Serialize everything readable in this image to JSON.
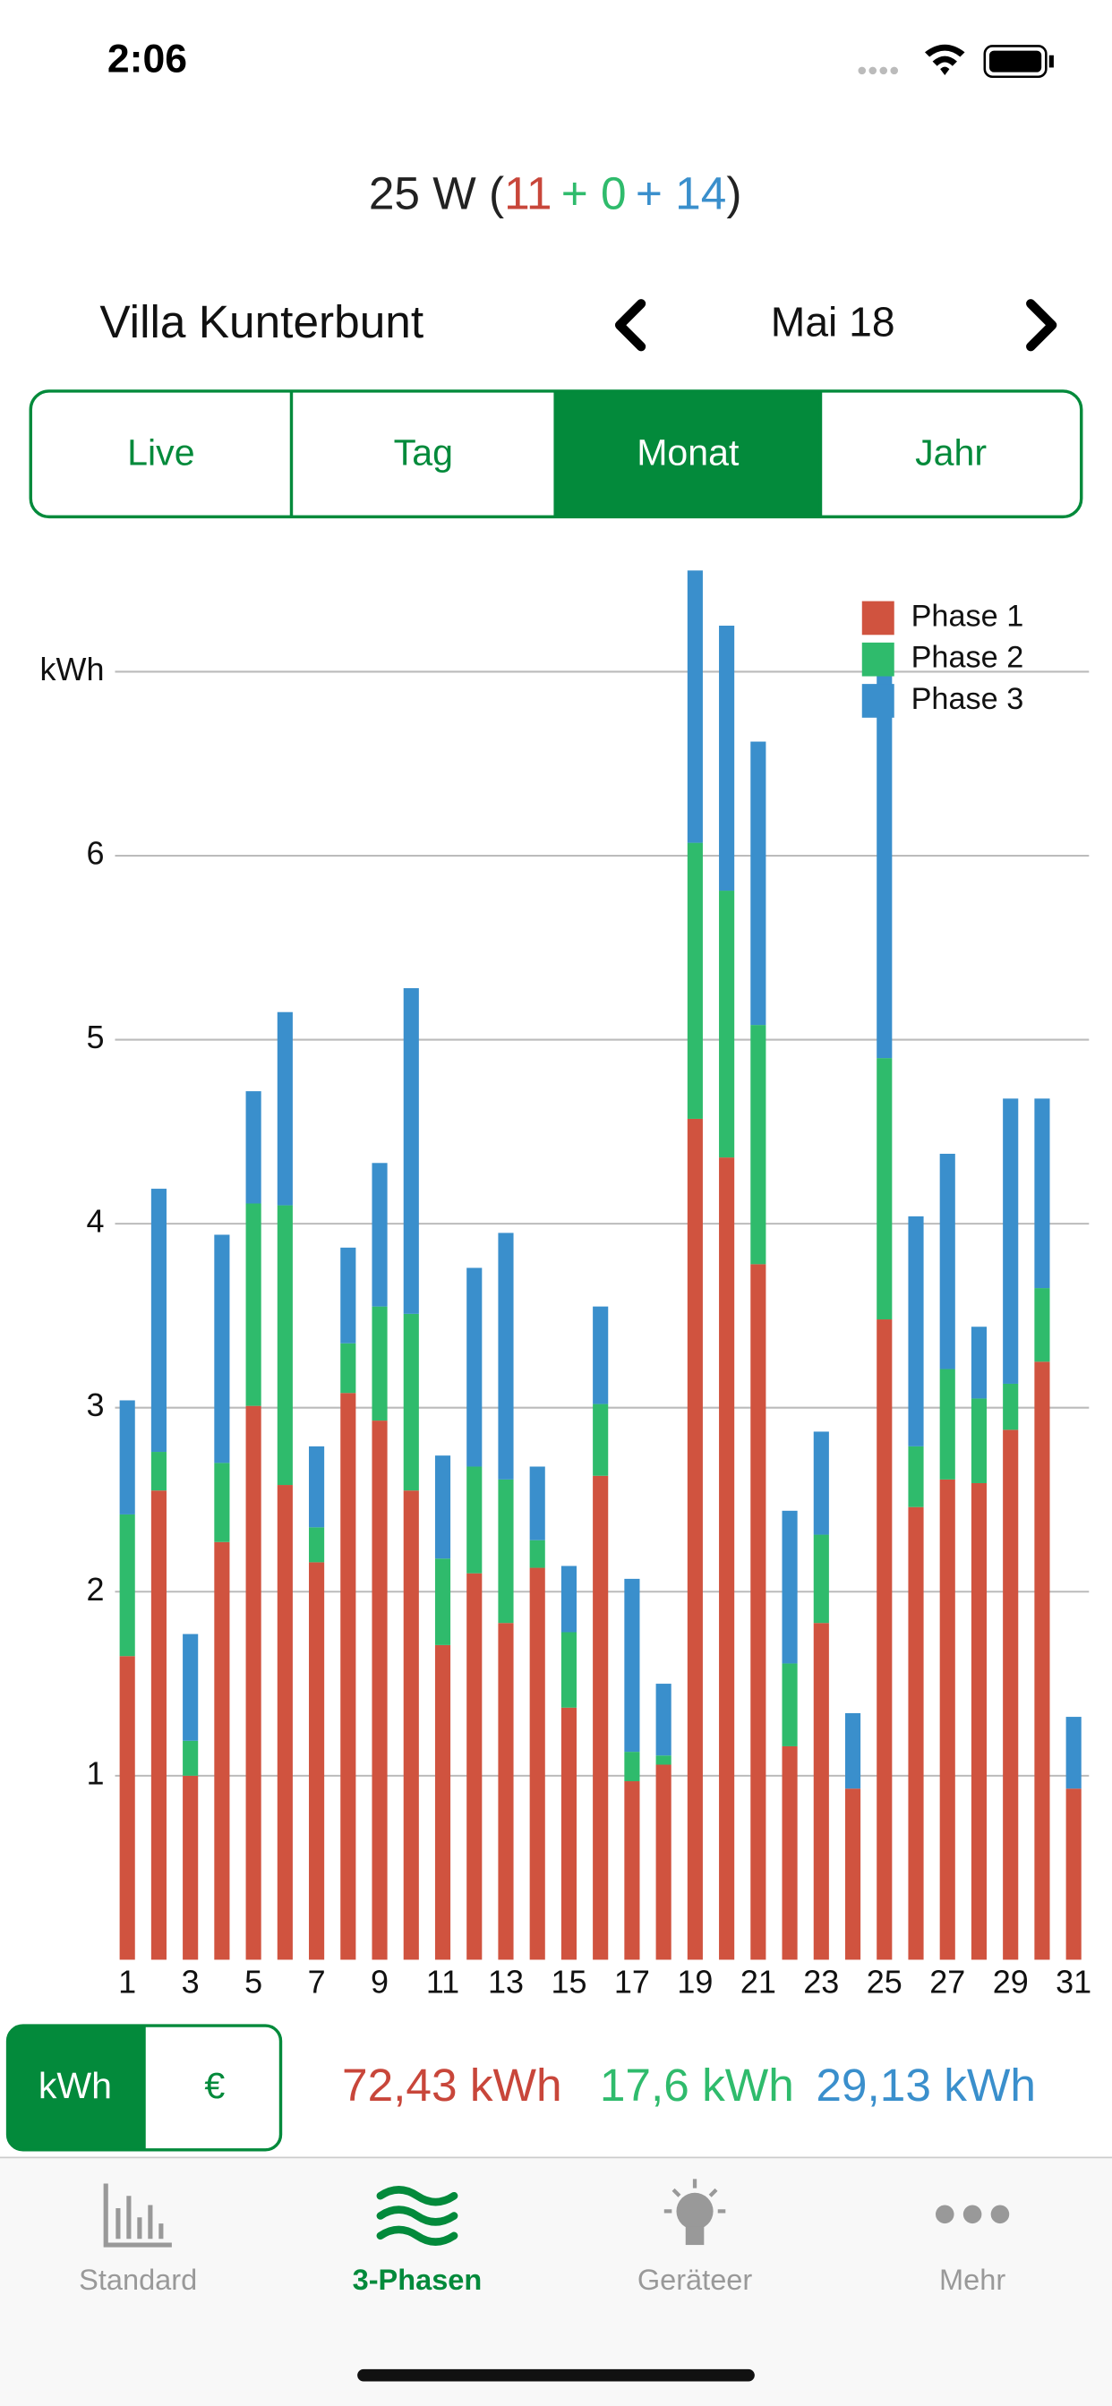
{
  "status": {
    "time": "2:06"
  },
  "header": {
    "prefix": "25 W (",
    "p1": "11",
    "p2": "+ 0",
    "p3": "+ 14",
    "suffix": ")"
  },
  "location": "Villa Kunterbunt",
  "date": "Mai 18",
  "tabs": [
    "Live",
    "Tag",
    "Monat",
    "Jahr"
  ],
  "unit_toggle": [
    "kWh",
    "€"
  ],
  "totals": [
    "72,43 kWh",
    "17,6 kWh",
    "29,13 kWh"
  ],
  "tab_bar": [
    "Standard",
    "3-Phasen",
    "Geräteer",
    "Mehr"
  ],
  "chart_data": {
    "type": "stacked_bar",
    "categories": [
      "1",
      null,
      "3",
      null,
      "5",
      null,
      "7",
      null,
      "9",
      null,
      "11",
      null,
      "13",
      null,
      "15",
      null,
      "17",
      null,
      "19",
      null,
      "21",
      null,
      "23",
      null,
      "25",
      null,
      "27",
      null,
      "29",
      null,
      "31"
    ],
    "series": [
      {
        "name": "Phase 1",
        "color": "#d0533f",
        "values": [
          1.65,
          2.55,
          1.0,
          2.27,
          3.01,
          2.58,
          2.16,
          3.08,
          2.93,
          2.55,
          1.71,
          2.1,
          1.83,
          2.13,
          1.37,
          2.63,
          0.97,
          1.06,
          4.57,
          4.36,
          3.78,
          1.16,
          1.83,
          0.93,
          3.48,
          2.46,
          2.61,
          2.59,
          2.88,
          3.25,
          0.93
        ]
      },
      {
        "name": "Phase 2",
        "color": "#2fbb6c",
        "values": [
          0.77,
          0.21,
          0.19,
          0.43,
          1.1,
          1.52,
          0.19,
          0.27,
          0.62,
          0.96,
          0.47,
          0.58,
          0.78,
          0.15,
          0.41,
          0.39,
          0.16,
          0.05,
          1.5,
          1.45,
          1.3,
          0.45,
          0.48,
          0,
          1.42,
          0.33,
          0.6,
          0.46,
          0.25,
          0.4,
          0
        ]
      },
      {
        "name": "Phase 3",
        "color": "#3a8fcc",
        "values": [
          0.62,
          1.43,
          0.58,
          1.24,
          0.61,
          1.05,
          0.44,
          0.52,
          0.78,
          1.77,
          0.56,
          1.08,
          1.34,
          0.4,
          0.36,
          0.53,
          0.94,
          0.39,
          1.48,
          1.44,
          1.54,
          0.83,
          0.56,
          0.41,
          2.25,
          1.25,
          1.17,
          0.39,
          1.55,
          1.03,
          0.39
        ]
      }
    ],
    "ylim": [
      0,
      7.6
    ],
    "yticks": [
      1,
      2,
      3,
      4,
      5,
      6,
      {
        "value": 7,
        "label": "kWh"
      }
    ],
    "grid": true,
    "legend": "top-right"
  }
}
